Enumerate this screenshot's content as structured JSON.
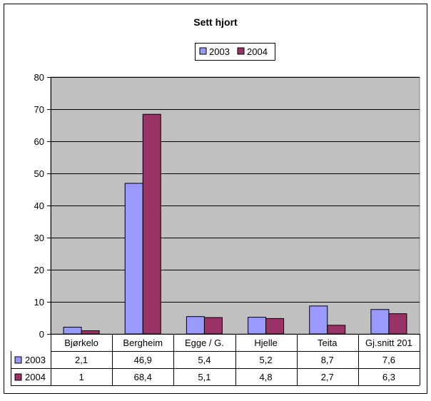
{
  "chart_data": {
    "type": "bar",
    "title": "Sett hjort",
    "categories": [
      "Bjørkelo",
      "Bergheim",
      "Egge / G.",
      "Hjelle",
      "Teita",
      "Gj.snitt 201"
    ],
    "series": [
      {
        "name": "2003",
        "values": [
          2.1,
          46.9,
          5.4,
          5.2,
          8.7,
          7.6
        ],
        "labels": [
          "2,1",
          "46,9",
          "5,4",
          "5,2",
          "8,7",
          "7,6"
        ],
        "color": "#9999FF"
      },
      {
        "name": "2004",
        "values": [
          1,
          68.4,
          5.1,
          4.8,
          2.7,
          6.3
        ],
        "labels": [
          "1",
          "68,4",
          "5,1",
          "4,8",
          "2,7",
          "6,3"
        ],
        "color": "#993366"
      }
    ],
    "ylim": [
      0,
      80
    ],
    "yticks": [
      0,
      10,
      20,
      30,
      40,
      50,
      60,
      70,
      80
    ],
    "grid": true,
    "legend": "top-center",
    "plot_background": "#C0C0C0",
    "data_table": true
  }
}
